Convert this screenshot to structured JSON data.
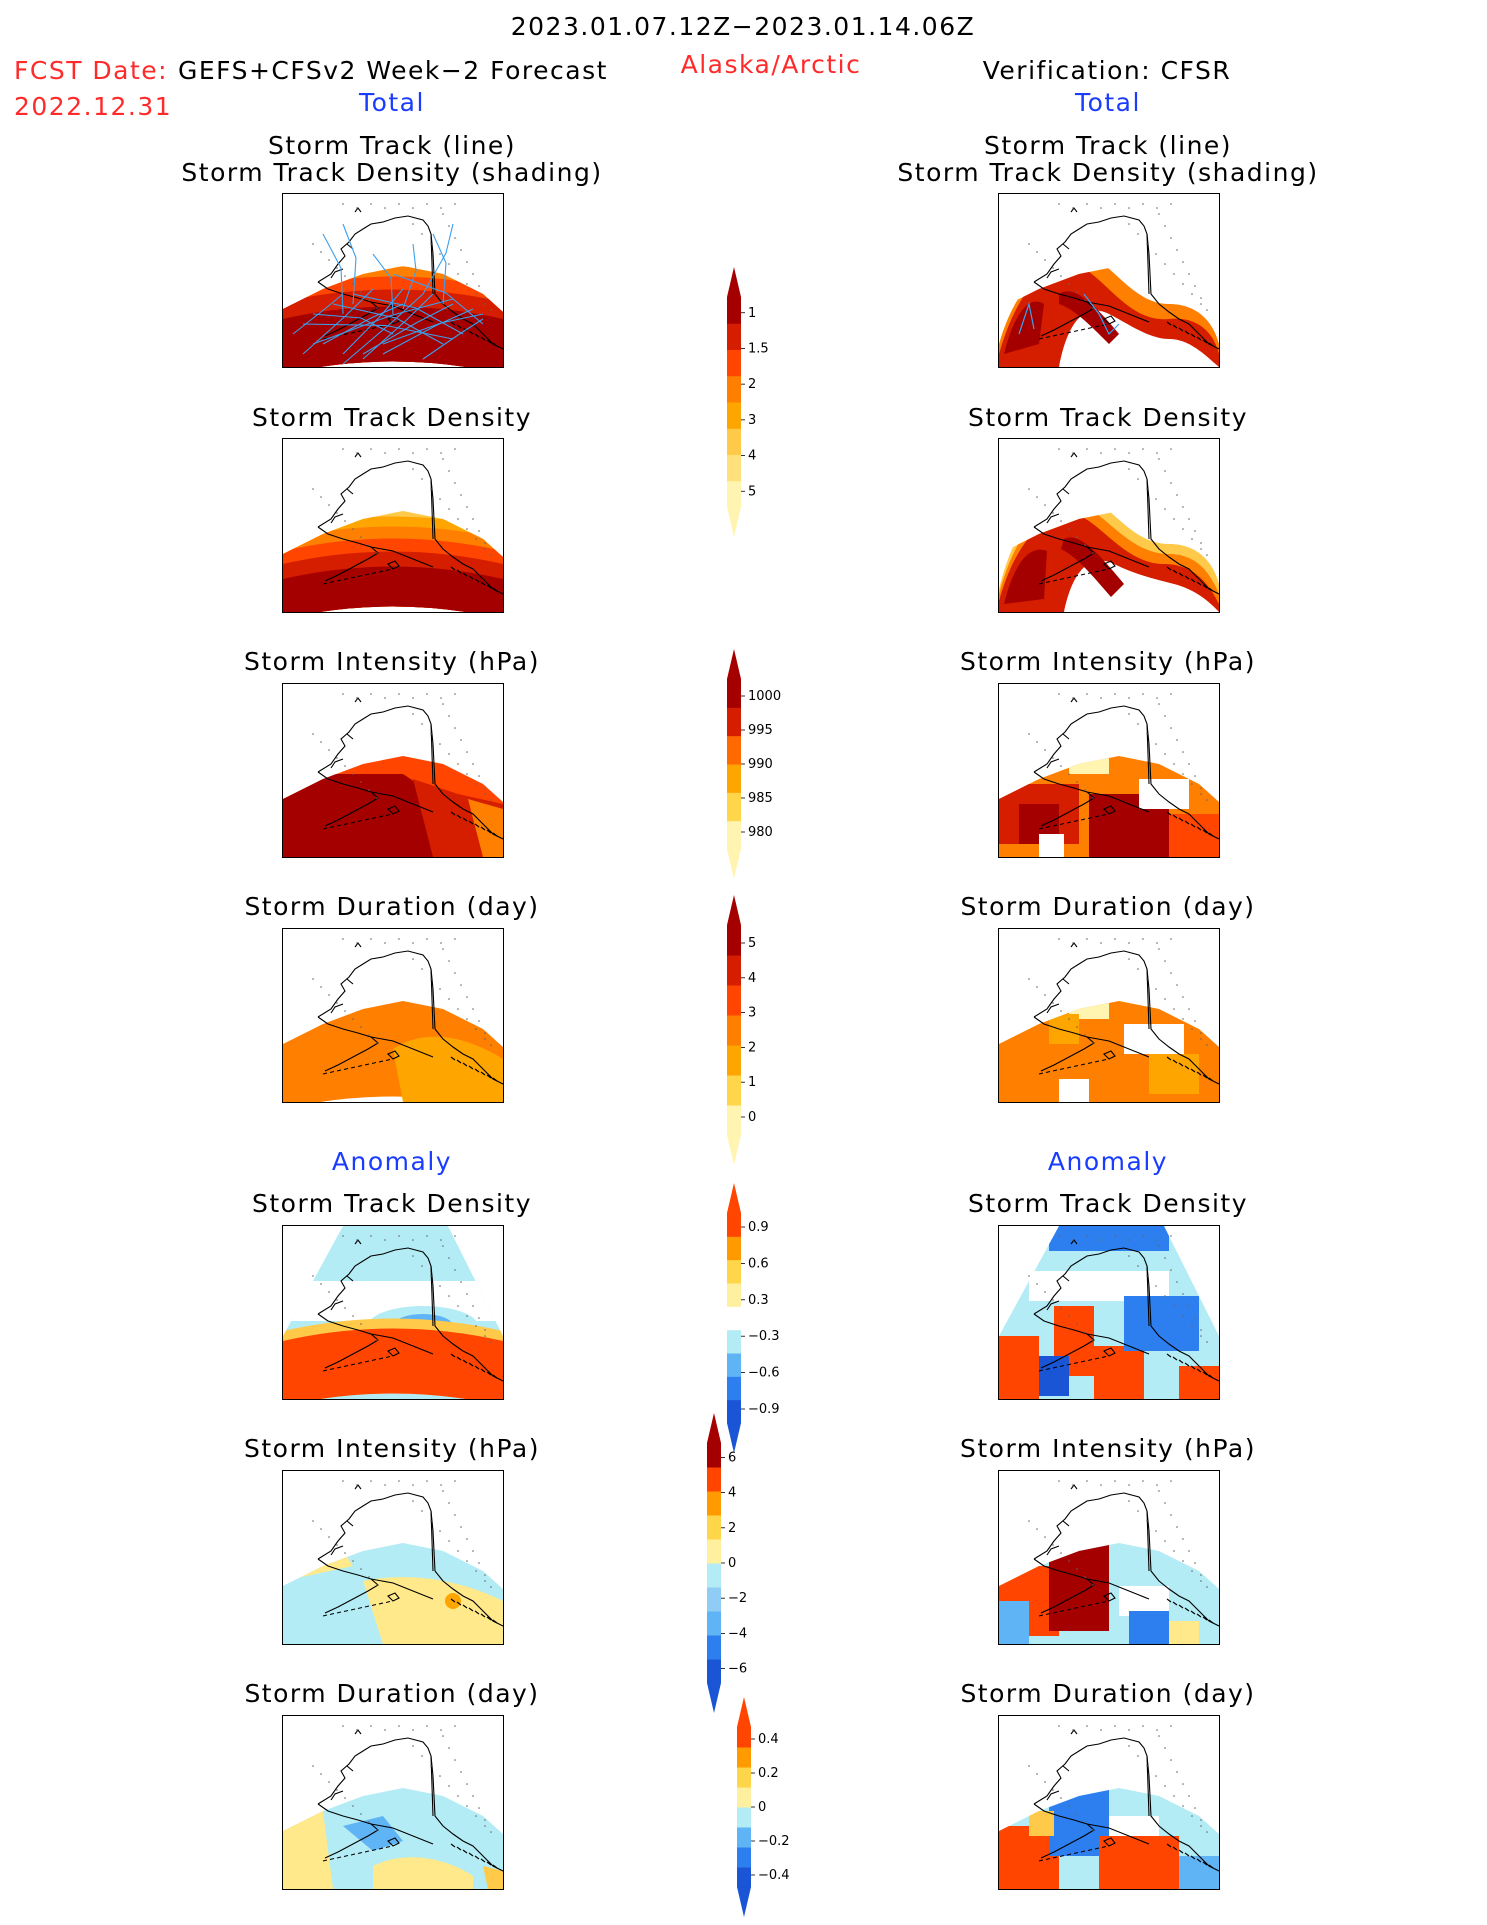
{
  "header": {
    "date_range": "2023.01.07.12Z−2023.01.14.06Z",
    "fcst_label": "FCST Date:",
    "fcst_model": "GEFS+CFSv2 Week−2 Forecast",
    "fcst_date": "2022.12.31",
    "region": "Alaska/Arctic",
    "verification": "Verification: CFSR",
    "left_total": "Total",
    "right_total": "Total",
    "left_anomaly": "Anomaly",
    "right_anomaly": "Anomaly"
  },
  "panels": {
    "track_line": "Storm Track (line)",
    "track_shading": "Storm Track Density (shading)",
    "density": "Storm Track Density",
    "intensity": "Storm Intensity (hPa)",
    "duration": "Storm Duration (day)"
  },
  "colors": {
    "dark_red": "#a50000",
    "red": "#d51d00",
    "orange_red": "#ff4500",
    "orange": "#ff7f00",
    "light_orange": "#ffa500",
    "gold": "#ffc94a",
    "pale_yellow": "#fff5b0",
    "light_blue": "#b3ecf5",
    "mid_blue": "#5fb4f5",
    "blue": "#2d7ff0",
    "dark_blue": "#1a55d6",
    "track_line": "#3aa0ee"
  },
  "chart_data": [
    {
      "type": "heatmap",
      "name": "colorbar-density",
      "labels": [
        "1",
        "1.5",
        "2",
        "3",
        "4",
        "5"
      ],
      "values": [
        1,
        1.5,
        2,
        3,
        4,
        5
      ]
    },
    {
      "type": "heatmap",
      "name": "colorbar-intensity",
      "labels": [
        "1000",
        "995",
        "990",
        "985",
        "980"
      ],
      "values": [
        1000,
        995,
        990,
        985,
        980
      ]
    },
    {
      "type": "heatmap",
      "name": "colorbar-duration",
      "labels": [
        "5",
        "4",
        "3",
        "2",
        "1",
        "0"
      ],
      "values": [
        5,
        4,
        3,
        2,
        1,
        0
      ]
    },
    {
      "type": "heatmap",
      "name": "colorbar-density-anomaly",
      "labels": [
        "0.9",
        "0.6",
        "0.3",
        "−0.3",
        "−0.6",
        "−0.9"
      ],
      "values": [
        0.9,
        0.6,
        0.3,
        -0.3,
        -0.6,
        -0.9
      ]
    },
    {
      "type": "heatmap",
      "name": "colorbar-intensity-anomaly",
      "labels": [
        "6",
        "4",
        "2",
        "0",
        "−2",
        "−4",
        "−6"
      ],
      "values": [
        6,
        4,
        2,
        0,
        -2,
        -4,
        -6
      ]
    },
    {
      "type": "heatmap",
      "name": "colorbar-duration-anomaly",
      "labels": [
        "0.4",
        "0.2",
        "0",
        "−0.2",
        "−0.4"
      ],
      "values": [
        0.4,
        0.2,
        0,
        -0.2,
        -0.4
      ]
    }
  ]
}
